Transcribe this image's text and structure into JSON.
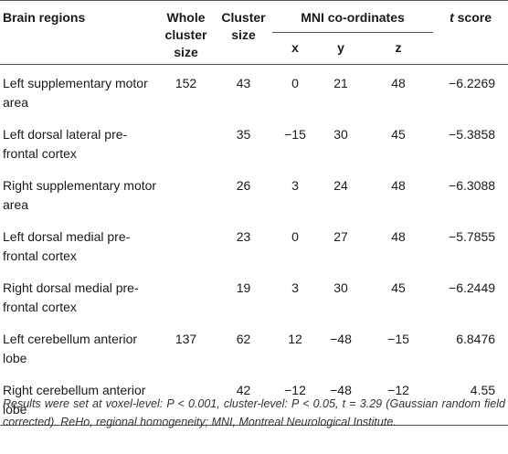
{
  "headers": {
    "brain_regions": "Brain regions",
    "whole_cluster_size": "Whole cluster size",
    "cluster_size": "Cluster size",
    "mni": "MNI co-ordinates",
    "x": "x",
    "y": "y",
    "z": "z",
    "t_score_t": "t",
    "t_score_rest": " score"
  },
  "rows": [
    {
      "region": "Left supplementary motor area",
      "whole": "152",
      "cluster": "43",
      "x": "0",
      "y": "21",
      "z": "48",
      "t": "−6.2269"
    },
    {
      "region": "Left dorsal lateral pre-frontal cortex",
      "whole": "",
      "cluster": "35",
      "x": "−15",
      "y": "30",
      "z": "45",
      "t": "−5.3858"
    },
    {
      "region": "Right supplementary motor area",
      "whole": "",
      "cluster": "26",
      "x": "3",
      "y": "24",
      "z": "48",
      "t": "−6.3088"
    },
    {
      "region": "Left dorsal medial pre-frontal cortex",
      "whole": "",
      "cluster": "23",
      "x": "0",
      "y": "27",
      "z": "48",
      "t": "−5.7855"
    },
    {
      "region": "Right dorsal medial pre-frontal cortex",
      "whole": "",
      "cluster": "19",
      "x": "3",
      "y": "30",
      "z": "45",
      "t": "−6.2449"
    },
    {
      "region": "Left cerebellum anterior lobe",
      "whole": "137",
      "cluster": "62",
      "x": "12",
      "y": "−48",
      "z": "−15",
      "t": "6.8476"
    },
    {
      "region": "Right cerebellum anterior lobe",
      "whole": "",
      "cluster": "42",
      "x": "−12",
      "y": "−48",
      "z": "−12",
      "t": "4.55"
    }
  ],
  "footnote": "Results were set at voxel-level: P < 0.001, cluster-level: P < 0.05, t = 3.29 (Gaussian random field corrected). ReHo, regional homogeneity; MNI, Montreal Neurological Institute."
}
